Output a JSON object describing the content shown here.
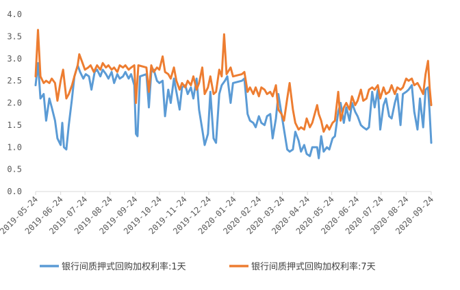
{
  "chart_data": {
    "type": "line",
    "title": "",
    "xlabel": "",
    "ylabel": "",
    "ylim": [
      0,
      4.0
    ],
    "yticks": [
      "0.0",
      "0.5",
      "1.0",
      "1.5",
      "2.0",
      "2.5",
      "3.0",
      "3.5",
      "4.0"
    ],
    "xlim": [
      "2019-05-24",
      "2020-09-24"
    ],
    "xticks": [
      "2019-05-24",
      "2019-06-24",
      "2019-07-24",
      "2019-08-24",
      "2019-09-24",
      "2019-10-24",
      "2019-11-24",
      "2019-12-24",
      "2020-01-24",
      "2020-02-24",
      "2020-03-24",
      "2020-04-24",
      "2020-05-24",
      "2020-06-24",
      "2020-07-24",
      "2020-08-24",
      "2020-09-24"
    ],
    "grid": false,
    "legend_position": "bottom",
    "series": [
      {
        "name": "银行间质押式回购加权利率:1天",
        "color": "#5B9BD5",
        "points": [
          [
            "2019-05-24",
            2.4
          ],
          [
            "2019-05-27",
            2.9
          ],
          [
            "2019-05-30",
            2.1
          ],
          [
            "2019-06-03",
            2.2
          ],
          [
            "2019-06-06",
            1.6
          ],
          [
            "2019-06-10",
            2.1
          ],
          [
            "2019-06-13",
            1.9
          ],
          [
            "2019-06-17",
            1.6
          ],
          [
            "2019-06-20",
            1.2
          ],
          [
            "2019-06-24",
            1.05
          ],
          [
            "2019-06-26",
            1.55
          ],
          [
            "2019-06-28",
            1.0
          ],
          [
            "2019-07-01",
            0.95
          ],
          [
            "2019-07-04",
            1.5
          ],
          [
            "2019-07-08",
            2.1
          ],
          [
            "2019-07-11",
            2.6
          ],
          [
            "2019-07-15",
            2.85
          ],
          [
            "2019-07-18",
            2.7
          ],
          [
            "2019-07-22",
            2.55
          ],
          [
            "2019-07-25",
            2.65
          ],
          [
            "2019-07-29",
            2.6
          ],
          [
            "2019-08-01",
            2.3
          ],
          [
            "2019-08-05",
            2.7
          ],
          [
            "2019-08-08",
            2.75
          ],
          [
            "2019-08-12",
            2.6
          ],
          [
            "2019-08-15",
            2.75
          ],
          [
            "2019-08-19",
            2.65
          ],
          [
            "2019-08-22",
            2.55
          ],
          [
            "2019-08-26",
            2.7
          ],
          [
            "2019-08-29",
            2.45
          ],
          [
            "2019-09-02",
            2.65
          ],
          [
            "2019-09-05",
            2.55
          ],
          [
            "2019-09-09",
            2.6
          ],
          [
            "2019-09-12",
            2.7
          ],
          [
            "2019-09-16",
            2.55
          ],
          [
            "2019-09-19",
            2.65
          ],
          [
            "2019-09-23",
            2.4
          ],
          [
            "2019-09-25",
            1.3
          ],
          [
            "2019-09-27",
            1.25
          ],
          [
            "2019-09-30",
            2.6
          ],
          [
            "2019-10-08",
            2.65
          ],
          [
            "2019-10-11",
            1.9
          ],
          [
            "2019-10-14",
            2.7
          ],
          [
            "2019-10-17",
            2.75
          ],
          [
            "2019-10-21",
            2.5
          ],
          [
            "2019-10-24",
            2.45
          ],
          [
            "2019-10-28",
            2.5
          ],
          [
            "2019-10-31",
            1.7
          ],
          [
            "2019-11-04",
            2.3
          ],
          [
            "2019-11-07",
            2.0
          ],
          [
            "2019-11-11",
            2.55
          ],
          [
            "2019-11-14",
            2.25
          ],
          [
            "2019-11-18",
            1.85
          ],
          [
            "2019-11-21",
            2.35
          ],
          [
            "2019-11-25",
            2.4
          ],
          [
            "2019-11-28",
            2.2
          ],
          [
            "2019-12-02",
            2.35
          ],
          [
            "2019-12-05",
            2.1
          ],
          [
            "2019-12-09",
            2.55
          ],
          [
            "2019-12-12",
            1.85
          ],
          [
            "2019-12-16",
            1.4
          ],
          [
            "2019-12-19",
            1.05
          ],
          [
            "2019-12-23",
            1.3
          ],
          [
            "2019-12-26",
            2.25
          ],
          [
            "2019-12-30",
            1.2
          ],
          [
            "2020-01-02",
            1.1
          ],
          [
            "2020-01-06",
            2.2
          ],
          [
            "2020-01-09",
            2.4
          ],
          [
            "2020-01-13",
            2.5
          ],
          [
            "2020-01-16",
            2.6
          ],
          [
            "2020-01-20",
            2.0
          ],
          [
            "2020-01-23",
            2.45
          ],
          [
            "2020-02-03",
            2.5
          ],
          [
            "2020-02-06",
            2.55
          ],
          [
            "2020-02-10",
            1.75
          ],
          [
            "2020-02-13",
            1.6
          ],
          [
            "2020-02-17",
            1.55
          ],
          [
            "2020-02-20",
            1.45
          ],
          [
            "2020-02-24",
            1.7
          ],
          [
            "2020-02-27",
            1.55
          ],
          [
            "2020-03-02",
            1.5
          ],
          [
            "2020-03-05",
            1.7
          ],
          [
            "2020-03-09",
            1.75
          ],
          [
            "2020-03-12",
            1.2
          ],
          [
            "2020-03-16",
            1.65
          ],
          [
            "2020-03-19",
            2.2
          ],
          [
            "2020-03-23",
            1.75
          ],
          [
            "2020-03-26",
            1.4
          ],
          [
            "2020-03-30",
            0.95
          ],
          [
            "2020-04-02",
            0.9
          ],
          [
            "2020-04-06",
            0.95
          ],
          [
            "2020-04-09",
            1.35
          ],
          [
            "2020-04-13",
            1.15
          ],
          [
            "2020-04-16",
            0.9
          ],
          [
            "2020-04-20",
            1.05
          ],
          [
            "2020-04-23",
            0.85
          ],
          [
            "2020-04-27",
            0.8
          ],
          [
            "2020-04-30",
            1.0
          ],
          [
            "2020-05-06",
            1.0
          ],
          [
            "2020-05-08",
            0.75
          ],
          [
            "2020-05-11",
            1.25
          ],
          [
            "2020-05-14",
            0.9
          ],
          [
            "2020-05-18",
            1.0
          ],
          [
            "2020-05-21",
            0.95
          ],
          [
            "2020-05-25",
            1.2
          ],
          [
            "2020-05-28",
            1.25
          ],
          [
            "2020-06-01",
            1.8
          ],
          [
            "2020-06-04",
            2.0
          ],
          [
            "2020-06-08",
            1.55
          ],
          [
            "2020-06-11",
            1.9
          ],
          [
            "2020-06-15",
            1.6
          ],
          [
            "2020-06-18",
            2.0
          ],
          [
            "2020-06-22",
            1.8
          ],
          [
            "2020-06-25",
            1.7
          ],
          [
            "2020-06-29",
            1.5
          ],
          [
            "2020-07-02",
            1.45
          ],
          [
            "2020-07-06",
            1.4
          ],
          [
            "2020-07-09",
            1.45
          ],
          [
            "2020-07-13",
            2.25
          ],
          [
            "2020-07-16",
            1.9
          ],
          [
            "2020-07-20",
            2.3
          ],
          [
            "2020-07-23",
            1.4
          ],
          [
            "2020-07-27",
            1.95
          ],
          [
            "2020-07-30",
            2.1
          ],
          [
            "2020-08-03",
            1.7
          ],
          [
            "2020-08-06",
            1.65
          ],
          [
            "2020-08-10",
            2.0
          ],
          [
            "2020-08-13",
            2.2
          ],
          [
            "2020-08-17",
            1.5
          ],
          [
            "2020-08-20",
            2.2
          ],
          [
            "2020-08-24",
            2.25
          ],
          [
            "2020-08-27",
            2.3
          ],
          [
            "2020-08-31",
            2.4
          ],
          [
            "2020-09-03",
            1.8
          ],
          [
            "2020-09-07",
            1.4
          ],
          [
            "2020-09-10",
            2.1
          ],
          [
            "2020-09-14",
            1.45
          ],
          [
            "2020-09-17",
            2.3
          ],
          [
            "2020-09-20",
            2.35
          ],
          [
            "2020-09-22",
            1.8
          ],
          [
            "2020-09-24",
            1.1
          ]
        ]
      },
      {
        "name": "银行间质押式回购加权利率:7天",
        "color": "#ED7D31",
        "points": [
          [
            "2019-05-24",
            2.6
          ],
          [
            "2019-05-27",
            3.65
          ],
          [
            "2019-05-30",
            2.6
          ],
          [
            "2019-06-03",
            2.45
          ],
          [
            "2019-06-06",
            2.5
          ],
          [
            "2019-06-10",
            2.45
          ],
          [
            "2019-06-13",
            2.55
          ],
          [
            "2019-06-17",
            2.45
          ],
          [
            "2019-06-20",
            2.05
          ],
          [
            "2019-06-24",
            2.5
          ],
          [
            "2019-06-27",
            2.75
          ],
          [
            "2019-07-01",
            2.1
          ],
          [
            "2019-07-04",
            2.2
          ],
          [
            "2019-07-08",
            2.4
          ],
          [
            "2019-07-11",
            2.6
          ],
          [
            "2019-07-15",
            2.85
          ],
          [
            "2019-07-17",
            3.1
          ],
          [
            "2019-07-21",
            2.9
          ],
          [
            "2019-07-24",
            2.75
          ],
          [
            "2019-07-28",
            2.8
          ],
          [
            "2019-07-31",
            2.85
          ],
          [
            "2019-08-04",
            2.7
          ],
          [
            "2019-08-08",
            2.85
          ],
          [
            "2019-08-12",
            2.75
          ],
          [
            "2019-08-15",
            2.9
          ],
          [
            "2019-08-19",
            2.8
          ],
          [
            "2019-08-22",
            2.85
          ],
          [
            "2019-08-26",
            2.75
          ],
          [
            "2019-08-29",
            2.8
          ],
          [
            "2019-09-02",
            2.7
          ],
          [
            "2019-09-05",
            2.85
          ],
          [
            "2019-09-09",
            2.8
          ],
          [
            "2019-09-12",
            2.85
          ],
          [
            "2019-09-16",
            2.75
          ],
          [
            "2019-09-19",
            2.8
          ],
          [
            "2019-09-23",
            2.85
          ],
          [
            "2019-09-25",
            2.0
          ],
          [
            "2019-09-28",
            2.85
          ],
          [
            "2019-10-08",
            2.8
          ],
          [
            "2019-10-11",
            2.25
          ],
          [
            "2019-10-14",
            2.85
          ],
          [
            "2019-10-17",
            2.7
          ],
          [
            "2019-10-21",
            2.8
          ],
          [
            "2019-10-24",
            2.75
          ],
          [
            "2019-10-28",
            3.05
          ],
          [
            "2019-10-31",
            2.7
          ],
          [
            "2019-11-04",
            2.65
          ],
          [
            "2019-11-07",
            2.55
          ],
          [
            "2019-11-11",
            2.8
          ],
          [
            "2019-11-14",
            2.5
          ],
          [
            "2019-11-18",
            2.3
          ],
          [
            "2019-11-21",
            2.45
          ],
          [
            "2019-11-25",
            2.35
          ],
          [
            "2019-11-28",
            2.5
          ],
          [
            "2019-12-02",
            2.4
          ],
          [
            "2019-12-05",
            2.6
          ],
          [
            "2019-12-09",
            2.3
          ],
          [
            "2019-12-12",
            2.45
          ],
          [
            "2019-12-16",
            2.8
          ],
          [
            "2019-12-19",
            2.2
          ],
          [
            "2019-12-23",
            2.35
          ],
          [
            "2019-12-26",
            2.6
          ],
          [
            "2019-12-30",
            2.2
          ],
          [
            "2020-01-02",
            2.25
          ],
          [
            "2020-01-06",
            2.75
          ],
          [
            "2020-01-09",
            2.6
          ],
          [
            "2020-01-12",
            3.55
          ],
          [
            "2020-01-15",
            2.65
          ],
          [
            "2020-01-20",
            2.8
          ],
          [
            "2020-01-23",
            2.6
          ],
          [
            "2020-02-03",
            2.65
          ],
          [
            "2020-02-06",
            2.7
          ],
          [
            "2020-02-10",
            2.25
          ],
          [
            "2020-02-13",
            2.35
          ],
          [
            "2020-02-17",
            2.2
          ],
          [
            "2020-02-20",
            2.35
          ],
          [
            "2020-02-24",
            2.15
          ],
          [
            "2020-02-27",
            2.35
          ],
          [
            "2020-03-02",
            2.3
          ],
          [
            "2020-03-05",
            2.2
          ],
          [
            "2020-03-09",
            2.25
          ],
          [
            "2020-03-12",
            2.15
          ],
          [
            "2020-03-16",
            2.4
          ],
          [
            "2020-03-19",
            1.85
          ],
          [
            "2020-03-23",
            1.75
          ],
          [
            "2020-03-26",
            1.6
          ],
          [
            "2020-03-30",
            2.1
          ],
          [
            "2020-04-02",
            2.45
          ],
          [
            "2020-04-06",
            1.85
          ],
          [
            "2020-04-09",
            1.55
          ],
          [
            "2020-04-13",
            1.4
          ],
          [
            "2020-04-16",
            1.45
          ],
          [
            "2020-04-20",
            1.4
          ],
          [
            "2020-04-23",
            1.65
          ],
          [
            "2020-04-27",
            1.45
          ],
          [
            "2020-04-30",
            1.55
          ],
          [
            "2020-05-06",
            1.95
          ],
          [
            "2020-05-08",
            1.75
          ],
          [
            "2020-05-11",
            1.6
          ],
          [
            "2020-05-14",
            1.35
          ],
          [
            "2020-05-18",
            1.5
          ],
          [
            "2020-05-21",
            1.4
          ],
          [
            "2020-05-25",
            1.55
          ],
          [
            "2020-05-28",
            1.6
          ],
          [
            "2020-06-01",
            2.25
          ],
          [
            "2020-06-04",
            1.6
          ],
          [
            "2020-06-08",
            1.9
          ],
          [
            "2020-06-11",
            2.0
          ],
          [
            "2020-06-15",
            1.85
          ],
          [
            "2020-06-18",
            2.15
          ],
          [
            "2020-06-22",
            1.95
          ],
          [
            "2020-06-25",
            2.05
          ],
          [
            "2020-06-29",
            2.3
          ],
          [
            "2020-07-02",
            2.05
          ],
          [
            "2020-07-06",
            2.1
          ],
          [
            "2020-07-09",
            2.3
          ],
          [
            "2020-07-13",
            2.35
          ],
          [
            "2020-07-16",
            2.3
          ],
          [
            "2020-07-20",
            2.4
          ],
          [
            "2020-07-23",
            2.1
          ],
          [
            "2020-07-27",
            2.35
          ],
          [
            "2020-07-30",
            2.2
          ],
          [
            "2020-08-03",
            2.25
          ],
          [
            "2020-08-06",
            2.4
          ],
          [
            "2020-08-10",
            2.2
          ],
          [
            "2020-08-13",
            2.35
          ],
          [
            "2020-08-17",
            2.3
          ],
          [
            "2020-08-20",
            2.35
          ],
          [
            "2020-08-24",
            2.55
          ],
          [
            "2020-08-27",
            2.5
          ],
          [
            "2020-08-31",
            2.55
          ],
          [
            "2020-09-03",
            2.4
          ],
          [
            "2020-09-07",
            2.45
          ],
          [
            "2020-09-10",
            2.35
          ],
          [
            "2020-09-14",
            2.2
          ],
          [
            "2020-09-17",
            2.65
          ],
          [
            "2020-09-20",
            2.95
          ],
          [
            "2020-09-22",
            2.35
          ],
          [
            "2020-09-24",
            1.95
          ]
        ]
      }
    ]
  }
}
